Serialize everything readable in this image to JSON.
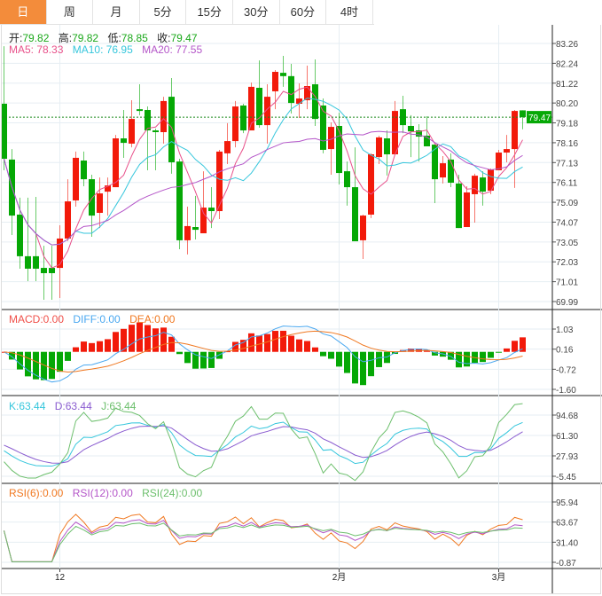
{
  "tabs": [
    "日",
    "周",
    "月",
    "5分",
    "15分",
    "30分",
    "60分",
    "4时"
  ],
  "active_tab": 0,
  "ohlc_legend": {
    "open_label": "开:",
    "open": "79.82",
    "high_label": "高:",
    "high": "79.82",
    "low_label": "低:",
    "low": "78.85",
    "close_label": "收:",
    "close": "79.47"
  },
  "ma_legend": {
    "ma5": "MA5: 78.33",
    "ma10": "MA10: 76.95",
    "ma20": "MA20: 77.55"
  },
  "macd_legend": {
    "macd": "MACD:0.00",
    "diff": "DIFF:0.00",
    "dea": "DEA:0.00"
  },
  "kdj_legend": {
    "k": "K:63.44",
    "d": "D:63.44",
    "j": "J:63.44"
  },
  "rsi_legend": {
    "rsi6": "RSI(6):0.00",
    "rsi12": "RSI(12):0.00",
    "rsi24": "RSI(24):0.00"
  },
  "price_axis": [
    "83.26",
    "82.24",
    "81.22",
    "80.20",
    "79.18",
    "78.16",
    "77.13",
    "76.11",
    "75.09",
    "74.07",
    "73.05",
    "72.03",
    "71.01",
    "69.99"
  ],
  "last_price": "79.47",
  "macd_axis": [
    "1.03",
    "0.16",
    "-0.72",
    "-1.60"
  ],
  "kdj_axis": [
    "94.68",
    "61.30",
    "27.93",
    "-5.45"
  ],
  "rsi_axis": [
    "95.94",
    "63.67",
    "31.40",
    "-0.87"
  ],
  "x_labels": [
    {
      "index": 7,
      "label": "12"
    },
    {
      "index": 42,
      "label": "2月"
    },
    {
      "index": 62,
      "label": "3月"
    }
  ],
  "colors": {
    "up": "#f21a0a",
    "down": "#05a805",
    "ma5": "#e8508a",
    "ma10": "#35c6dc",
    "ma20": "#b455c8",
    "accent": "#f38c3b",
    "diff": "#4aa8f0",
    "dea": "#f07820",
    "k": "#35c6dc",
    "d": "#8a5cd0",
    "j": "#6cbf6c",
    "rsi6": "#f07820",
    "rsi12": "#b455c8",
    "rsi24": "#6cbf6c"
  },
  "chart_data": {
    "type": "candlestick",
    "price_range": [
      69.99,
      83.26
    ],
    "candles": [
      [
        80.16,
        77.33,
        83.12,
        76.74
      ],
      [
        77.29,
        74.41,
        77.83,
        73.41
      ],
      [
        74.46,
        72.32,
        75.33,
        71.68
      ],
      [
        72.32,
        71.68,
        75.33,
        71.04
      ],
      [
        72.32,
        71.68,
        75.37,
        71.04
      ],
      [
        71.72,
        71.45,
        72.86,
        70.08
      ],
      [
        71.72,
        71.45,
        72.86,
        70.08
      ],
      [
        71.72,
        73.23,
        73.91,
        70.17
      ],
      [
        73.23,
        75.14,
        76.28,
        73.1
      ],
      [
        75.19,
        77.38,
        77.7,
        74.87
      ],
      [
        77.24,
        76.28,
        77.7,
        75.92
      ],
      [
        76.28,
        74.41,
        76.51,
        73.32
      ],
      [
        74.55,
        75.55,
        76.37,
        73.77
      ],
      [
        75.64,
        75.96,
        76.37,
        74.41
      ],
      [
        75.87,
        78.38,
        78.56,
        75.87
      ],
      [
        78.38,
        78.15,
        79.84,
        77.38
      ],
      [
        78.11,
        79.38,
        80.34,
        77.92
      ],
      [
        79.88,
        79.79,
        81.16,
        79.57
      ],
      [
        79.84,
        78.79,
        80.02,
        76.74
      ],
      [
        78.79,
        78.7,
        78.88,
        76.74
      ],
      [
        78.7,
        80.3,
        80.52,
        78.11
      ],
      [
        80.52,
        77.15,
        81.48,
        76.56
      ],
      [
        77.19,
        73.14,
        77.33,
        72.68
      ],
      [
        73.14,
        73.87,
        74.87,
        72.41
      ],
      [
        73.82,
        73.68,
        75.42,
        73.18
      ],
      [
        73.5,
        74.82,
        76.69,
        73.5
      ],
      [
        74.82,
        74.64,
        75.87,
        73.77
      ],
      [
        74.64,
        77.7,
        77.79,
        74.23
      ],
      [
        77.61,
        78.24,
        79.16,
        77.06
      ],
      [
        78.24,
        80.02,
        80.3,
        77.92
      ],
      [
        80.07,
        78.79,
        80.16,
        78.65
      ],
      [
        78.79,
        81.03,
        81.25,
        78.79
      ],
      [
        80.98,
        79.06,
        82.39,
        78.93
      ],
      [
        79.06,
        80.52,
        81.16,
        78.11
      ],
      [
        80.8,
        81.8,
        81.89,
        79.88
      ],
      [
        81.75,
        81.58,
        82.62,
        81.03
      ],
      [
        81.58,
        80.2,
        82.21,
        79.66
      ],
      [
        80.16,
        80.43,
        81.21,
        79.43
      ],
      [
        80.34,
        81.07,
        82.12,
        79.88
      ],
      [
        81.16,
        79.38,
        82.44,
        79.02
      ],
      [
        80.07,
        77.79,
        80.43,
        77.61
      ],
      [
        77.83,
        78.97,
        79.2,
        76.51
      ],
      [
        79.02,
        76.6,
        79.7,
        76.01
      ],
      [
        76.69,
        75.87,
        77.19,
        74.92
      ],
      [
        75.87,
        73.09,
        77.92,
        73.09
      ],
      [
        73.14,
        74.41,
        74.46,
        72.18
      ],
      [
        74.46,
        77.56,
        77.61,
        74.28
      ],
      [
        77.42,
        78.43,
        78.52,
        77.06
      ],
      [
        78.38,
        77.56,
        78.79,
        76.47
      ],
      [
        77.56,
        79.79,
        80.3,
        77.56
      ],
      [
        79.88,
        79.06,
        80.57,
        78.65
      ],
      [
        79.02,
        78.74,
        79.57,
        77.42
      ],
      [
        78.79,
        78.47,
        79.11,
        77.19
      ],
      [
        78.52,
        77.97,
        79.52,
        77.97
      ],
      [
        78.06,
        76.28,
        78.06,
        75.05
      ],
      [
        76.37,
        77.1,
        77.47,
        76.06
      ],
      [
        77.29,
        76.1,
        77.61,
        75.87
      ],
      [
        76.06,
        73.77,
        76.51,
        73.77
      ],
      [
        73.82,
        75.6,
        75.92,
        73.82
      ],
      [
        75.51,
        76.46,
        76.56,
        74.05
      ],
      [
        76.37,
        75.64,
        76.69,
        74.92
      ],
      [
        75.69,
        76.78,
        76.83,
        75.51
      ],
      [
        76.74,
        77.65,
        77.79,
        76.74
      ],
      [
        77.65,
        77.83,
        78.56,
        77.15
      ],
      [
        77.83,
        79.79,
        79.84,
        75.83
      ],
      [
        79.82,
        79.47,
        79.82,
        78.85
      ]
    ]
  }
}
